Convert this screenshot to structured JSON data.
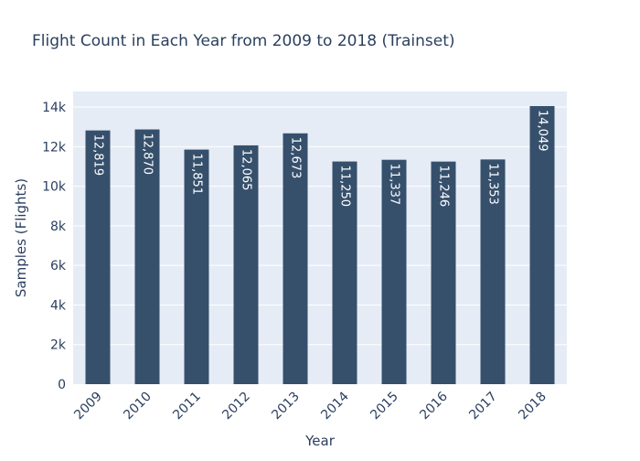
{
  "chart_data": {
    "type": "bar",
    "title": "Flight Count in Each Year from 2009 to 2018 (Trainset)",
    "xlabel": "Year",
    "ylabel": "Samples (Flights)",
    "categories": [
      "2009",
      "2010",
      "2011",
      "2012",
      "2013",
      "2014",
      "2015",
      "2016",
      "2017",
      "2018"
    ],
    "values": [
      12819,
      12870,
      11851,
      12065,
      12673,
      11250,
      11337,
      11246,
      11353,
      14049
    ],
    "data_labels": [
      "12,819",
      "12,870",
      "11,851",
      "12,065",
      "12,673",
      "11,250",
      "11,337",
      "11,246",
      "11,353",
      "14,049"
    ],
    "ylim": [
      0,
      14788
    ],
    "yticks": [
      0,
      2000,
      4000,
      6000,
      8000,
      10000,
      12000,
      14000
    ],
    "ytick_labels": [
      "0",
      "2k",
      "4k",
      "6k",
      "8k",
      "10k",
      "12k",
      "14k"
    ],
    "grid": true,
    "legend": "none",
    "colors": {
      "bar": "#36506c",
      "plot_bg": "#e5ecf6",
      "grid": "#ffffff",
      "text": "#2a3f5f",
      "label": "#ffffff"
    }
  }
}
